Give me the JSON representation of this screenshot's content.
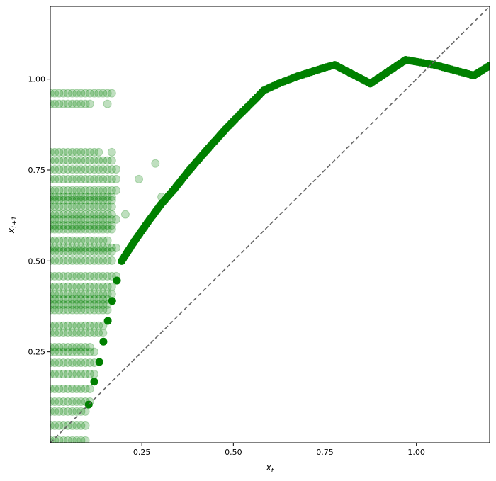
{
  "chart_data": {
    "type": "scatter",
    "title": "",
    "xlabel": "x_t",
    "ylabel": "x_{t+1}",
    "xlim": [
      0.0,
      1.2
    ],
    "ylim": [
      0.0,
      1.2
    ],
    "grid": false,
    "x_ticks": [
      "0.25",
      "0.50",
      "0.75",
      "1.00"
    ],
    "y_ticks": [
      "0.25",
      "0.50",
      "0.75",
      "1.00"
    ],
    "x_tick_values": [
      0.25,
      0.5,
      0.75,
      1.0
    ],
    "y_tick_values": [
      0.25,
      0.5,
      0.75,
      1.0
    ],
    "colors": {
      "points": "#008000",
      "diagonal": "#666666"
    },
    "reference_line": {
      "type": "y=x",
      "style": "dashed"
    },
    "light_points_alpha": 0.25,
    "light_rows": [
      {
        "y": 0.961,
        "x": [
          0,
          0.012,
          0.024,
          0.036,
          0.048,
          0.06,
          0.072,
          0.084,
          0.096,
          0.108,
          0.12,
          0.132,
          0.144,
          0.156,
          0.168
        ]
      },
      {
        "y": 0.932,
        "x": [
          0,
          0.012,
          0.024,
          0.036,
          0.048,
          0.06,
          0.072,
          0.084,
          0.096,
          0.108,
          0.156
        ]
      },
      {
        "y": 0.799,
        "x": [
          0,
          0.012,
          0.024,
          0.036,
          0.048,
          0.06,
          0.072,
          0.084,
          0.096,
          0.108,
          0.12,
          0.132,
          0.168
        ]
      },
      {
        "y": 0.776,
        "x": [
          0,
          0.012,
          0.024,
          0.036,
          0.048,
          0.06,
          0.072,
          0.084,
          0.096,
          0.108,
          0.12,
          0.132,
          0.144,
          0.156,
          0.168
        ]
      },
      {
        "y": 0.752,
        "x": [
          0,
          0.012,
          0.024,
          0.036,
          0.048,
          0.06,
          0.072,
          0.084,
          0.096,
          0.108,
          0.12,
          0.132,
          0.144,
          0.156,
          0.168,
          0.18
        ]
      },
      {
        "y": 0.725,
        "x": [
          0,
          0.012,
          0.024,
          0.036,
          0.048,
          0.06,
          0.072,
          0.084,
          0.096,
          0.108,
          0.12,
          0.132,
          0.144,
          0.156,
          0.168,
          0.18,
          0.242
        ]
      },
      {
        "y": 0.694,
        "x": [
          0,
          0.012,
          0.024,
          0.036,
          0.048,
          0.06,
          0.072,
          0.084,
          0.096,
          0.108,
          0.12,
          0.132,
          0.144,
          0.156,
          0.168,
          0.18
        ]
      },
      {
        "y": 0.676,
        "x": [
          0,
          0.012,
          0.024,
          0.036,
          0.048,
          0.06,
          0.072,
          0.084,
          0.096,
          0.108,
          0.12,
          0.132,
          0.144,
          0.156,
          0.168
        ]
      },
      {
        "y": 0.667,
        "x": [
          0,
          0.012,
          0.024,
          0.036,
          0.048,
          0.06,
          0.072,
          0.084,
          0.096,
          0.108,
          0.12,
          0.132,
          0.144,
          0.156,
          0.168
        ]
      },
      {
        "y": 0.649,
        "x": [
          0,
          0.012,
          0.024,
          0.036,
          0.048,
          0.06,
          0.072,
          0.084,
          0.096,
          0.108,
          0.12,
          0.132,
          0.144,
          0.156,
          0.168
        ]
      },
      {
        "y": 0.628,
        "x": [
          0,
          0.012,
          0.024,
          0.036,
          0.048,
          0.06,
          0.072,
          0.084,
          0.096,
          0.108,
          0.12,
          0.132,
          0.144,
          0.156,
          0.168,
          0.205
        ]
      },
      {
        "y": 0.614,
        "x": [
          0,
          0.012,
          0.024,
          0.036,
          0.048,
          0.06,
          0.072,
          0.084,
          0.096,
          0.108,
          0.12,
          0.132,
          0.144,
          0.156,
          0.168,
          0.18
        ]
      },
      {
        "y": 0.598,
        "x": [
          0,
          0.012,
          0.024,
          0.036,
          0.048,
          0.06,
          0.072,
          0.084,
          0.096,
          0.108,
          0.12,
          0.132,
          0.144,
          0.156,
          0.168
        ]
      },
      {
        "y": 0.587,
        "x": [
          0,
          0.012,
          0.024,
          0.036,
          0.048,
          0.06,
          0.072,
          0.084,
          0.096,
          0.108,
          0.12,
          0.132,
          0.144,
          0.156,
          0.168
        ]
      },
      {
        "y": 0.556,
        "x": [
          0,
          0.012,
          0.024,
          0.036,
          0.048,
          0.06,
          0.072,
          0.084,
          0.096,
          0.108,
          0.12,
          0.132,
          0.144,
          0.156
        ]
      },
      {
        "y": 0.536,
        "x": [
          0,
          0.012,
          0.024,
          0.036,
          0.048,
          0.06,
          0.072,
          0.084,
          0.096,
          0.108,
          0.12,
          0.132,
          0.144,
          0.156,
          0.168,
          0.18
        ]
      },
      {
        "y": 0.526,
        "x": [
          0,
          0.012,
          0.024,
          0.036,
          0.048,
          0.06,
          0.072,
          0.084,
          0.096,
          0.108,
          0.12,
          0.132,
          0.144,
          0.156,
          0.168
        ]
      },
      {
        "y": 0.501,
        "x": [
          0,
          0.012,
          0.024,
          0.036,
          0.048,
          0.06,
          0.072,
          0.084,
          0.096,
          0.108,
          0.12,
          0.132,
          0.144,
          0.156,
          0.168
        ]
      },
      {
        "y": 0.458,
        "x": [
          0,
          0.012,
          0.024,
          0.036,
          0.048,
          0.06,
          0.072,
          0.084,
          0.096,
          0.108,
          0.12,
          0.132,
          0.144,
          0.156,
          0.168,
          0.18
        ]
      },
      {
        "y": 0.429,
        "x": [
          0,
          0.012,
          0.024,
          0.036,
          0.048,
          0.06,
          0.072,
          0.084,
          0.096,
          0.108,
          0.12,
          0.132,
          0.144,
          0.156,
          0.168
        ]
      },
      {
        "y": 0.409,
        "x": [
          0,
          0.012,
          0.024,
          0.036,
          0.048,
          0.06,
          0.072,
          0.084,
          0.096,
          0.108,
          0.12,
          0.132,
          0.144,
          0.156,
          0.168
        ]
      },
      {
        "y": 0.394,
        "x": [
          0,
          0.012,
          0.024,
          0.036,
          0.048,
          0.06,
          0.072,
          0.084,
          0.096,
          0.108,
          0.12,
          0.132,
          0.144,
          0.156
        ]
      },
      {
        "y": 0.38,
        "x": [
          0,
          0.012,
          0.024,
          0.036,
          0.048,
          0.06,
          0.072,
          0.084,
          0.096,
          0.108,
          0.12,
          0.132,
          0.144,
          0.156
        ]
      },
      {
        "y": 0.365,
        "x": [
          0,
          0.012,
          0.024,
          0.036,
          0.048,
          0.06,
          0.072,
          0.084,
          0.096,
          0.108,
          0.12,
          0.132,
          0.144,
          0.156
        ]
      },
      {
        "y": 0.322,
        "x": [
          0,
          0.012,
          0.024,
          0.036,
          0.048,
          0.06,
          0.072,
          0.084,
          0.096,
          0.108,
          0.12,
          0.132,
          0.144
        ]
      },
      {
        "y": 0.302,
        "x": [
          0,
          0.012,
          0.024,
          0.036,
          0.048,
          0.06,
          0.072,
          0.084,
          0.096,
          0.108,
          0.12,
          0.132,
          0.144
        ]
      },
      {
        "y": 0.263,
        "x": [
          0,
          0.012,
          0.024,
          0.036,
          0.048,
          0.06,
          0.072,
          0.084,
          0.096,
          0.108
        ]
      },
      {
        "y": 0.25,
        "x": [
          0,
          0.012,
          0.024,
          0.036,
          0.048,
          0.06,
          0.072,
          0.084,
          0.096,
          0.108,
          0.12
        ]
      },
      {
        "y": 0.22,
        "x": [
          0,
          0.012,
          0.024,
          0.036,
          0.048,
          0.06,
          0.072,
          0.084,
          0.096,
          0.108,
          0.12
        ]
      },
      {
        "y": 0.189,
        "x": [
          0,
          0.012,
          0.024,
          0.036,
          0.048,
          0.06,
          0.072,
          0.084,
          0.096,
          0.108,
          0.12
        ]
      },
      {
        "y": 0.148,
        "x": [
          0,
          0.012,
          0.024,
          0.036,
          0.048,
          0.06,
          0.072,
          0.084,
          0.096,
          0.108
        ]
      },
      {
        "y": 0.113,
        "x": [
          0,
          0.012,
          0.024,
          0.036,
          0.048,
          0.06,
          0.072,
          0.084,
          0.096,
          0.108
        ]
      },
      {
        "y": 0.086,
        "x": [
          0,
          0.012,
          0.024,
          0.036,
          0.048,
          0.06,
          0.072,
          0.084,
          0.096
        ]
      },
      {
        "y": 0.047,
        "x": [
          0,
          0.012,
          0.024,
          0.036,
          0.048,
          0.06,
          0.072,
          0.084,
          0.096
        ]
      },
      {
        "y": 0.006,
        "x": [
          0,
          0.012,
          0.024,
          0.036,
          0.048,
          0.06,
          0.072,
          0.084,
          0.096
        ]
      },
      {
        "y": 0.768,
        "x": [
          0.287
        ]
      },
      {
        "y": 0.676,
        "x": [
          0.304
        ]
      }
    ],
    "dark_points": [
      [
        0.105,
        0.105
      ],
      [
        0.12,
        0.168
      ],
      [
        0.134,
        0.222
      ],
      [
        0.145,
        0.278
      ],
      [
        0.157,
        0.335
      ],
      [
        0.169,
        0.39
      ],
      [
        0.182,
        0.446
      ]
    ],
    "dark_curve": [
      [
        0.195,
        0.5
      ],
      [
        0.231,
        0.556
      ],
      [
        0.266,
        0.606
      ],
      [
        0.302,
        0.655
      ],
      [
        0.339,
        0.698
      ],
      [
        0.376,
        0.745
      ],
      [
        0.411,
        0.786
      ],
      [
        0.448,
        0.828
      ],
      [
        0.483,
        0.867
      ],
      [
        0.521,
        0.906
      ],
      [
        0.56,
        0.945
      ],
      [
        0.583,
        0.969
      ],
      [
        0.624,
        0.988
      ],
      [
        0.676,
        1.008
      ],
      [
        0.754,
        1.033
      ],
      [
        0.777,
        1.039
      ],
      [
        0.874,
        0.988
      ],
      [
        0.971,
        1.053
      ],
      [
        1.05,
        1.039
      ],
      [
        1.157,
        1.01
      ],
      [
        1.2,
        1.037
      ]
    ]
  }
}
